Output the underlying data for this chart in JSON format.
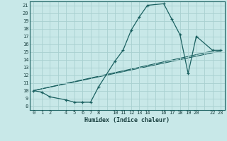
{
  "xlabel": "Humidex (Indice chaleur)",
  "bg_color": "#c8e8e8",
  "grid_color": "#a8d0d0",
  "line_color": "#1a6060",
  "xlim": [
    -0.5,
    23.5
  ],
  "ylim": [
    7.5,
    21.5
  ],
  "xticks_all": [
    0,
    1,
    2,
    3,
    4,
    5,
    6,
    7,
    8,
    9,
    10,
    11,
    12,
    13,
    14,
    15,
    16,
    17,
    18,
    19,
    20,
    21,
    22,
    23
  ],
  "xtick_labels": {
    "0": "0",
    "1": "1",
    "2": "2",
    "3": "",
    "4": "4",
    "5": "5",
    "6": "6",
    "7": "7",
    "8": "8",
    "9": "",
    "10": "10",
    "11": "11",
    "12": "12",
    "13": "13",
    "14": "14",
    "15": "",
    "16": "16",
    "17": "17",
    "18": "18",
    "19": "19",
    "20": "20",
    "21": "",
    "22": "22",
    "23": "23"
  },
  "yticks": [
    8,
    9,
    10,
    11,
    12,
    13,
    14,
    15,
    16,
    17,
    18,
    19,
    20,
    21
  ],
  "line1_x": [
    0,
    1,
    2,
    4,
    5,
    6,
    7,
    8,
    10,
    11,
    12,
    13,
    14,
    16,
    17,
    18,
    19,
    20,
    22,
    23
  ],
  "line1_y": [
    10.0,
    9.8,
    9.2,
    8.8,
    8.5,
    8.5,
    8.5,
    10.5,
    13.8,
    15.2,
    17.8,
    19.5,
    21.0,
    21.2,
    19.2,
    17.2,
    12.2,
    17.0,
    15.2,
    15.2
  ],
  "line2_x": [
    0,
    22
  ],
  "line2_y": [
    10.0,
    15.1
  ],
  "line3_x": [
    0,
    23
  ],
  "line3_y": [
    10.0,
    15.1
  ]
}
